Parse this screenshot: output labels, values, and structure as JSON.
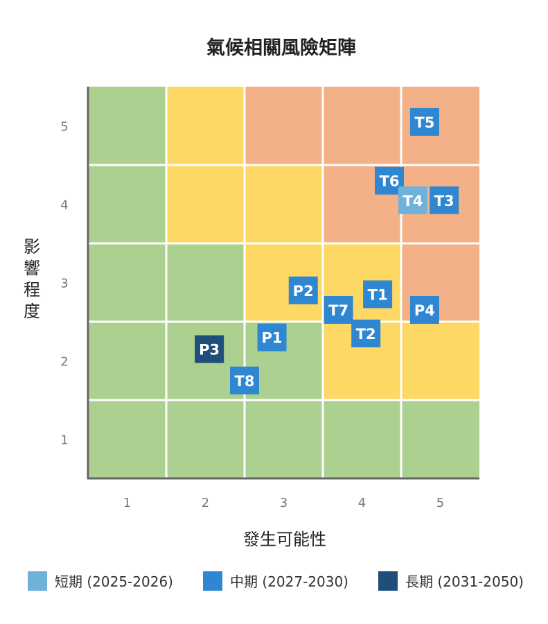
{
  "chart_data": {
    "type": "scatter",
    "title": "氣候相關風險矩陣",
    "xlabel": "發生可能性",
    "ylabel": "影響程度",
    "x_ticks": [
      "1",
      "2",
      "3",
      "4",
      "5"
    ],
    "y_ticks": [
      "1",
      "2",
      "3",
      "4",
      "5"
    ],
    "xlim": [
      0.5,
      5.5
    ],
    "ylim": [
      0.5,
      5.5
    ],
    "grid": true,
    "legend_position": "bottom",
    "zone_colors": {
      "low": "#acd090",
      "medium": "#fdd865",
      "high": "#f4b086"
    },
    "cells": [
      [
        "low",
        "low",
        "low",
        "low",
        "low"
      ],
      [
        "low",
        "low",
        "low",
        "medium",
        "medium"
      ],
      [
        "low",
        "low",
        "medium",
        "medium",
        "high"
      ],
      [
        "low",
        "medium",
        "medium",
        "high",
        "high"
      ],
      [
        "low",
        "medium",
        "high",
        "high",
        "high"
      ]
    ],
    "legend": [
      {
        "key": "short",
        "label": "短期 (2025-2026)",
        "color": "#6fb2d9"
      },
      {
        "key": "mid",
        "label": "中期 (2027-2030)",
        "color": "#2f87d1"
      },
      {
        "key": "long",
        "label": "長期 (2031-2050)",
        "color": "#1f4e7a"
      }
    ],
    "points": [
      {
        "label": "T5",
        "x": 4.8,
        "y": 5.05,
        "term": "mid"
      },
      {
        "label": "T6",
        "x": 4.35,
        "y": 4.3,
        "term": "mid"
      },
      {
        "label": "T4",
        "x": 4.65,
        "y": 4.05,
        "term": "short"
      },
      {
        "label": "T3",
        "x": 5.05,
        "y": 4.05,
        "term": "mid"
      },
      {
        "label": "P2",
        "x": 3.25,
        "y": 2.9,
        "term": "mid"
      },
      {
        "label": "T1",
        "x": 4.2,
        "y": 2.85,
        "term": "mid"
      },
      {
        "label": "T7",
        "x": 3.7,
        "y": 2.65,
        "term": "mid"
      },
      {
        "label": "P4",
        "x": 4.8,
        "y": 2.65,
        "term": "mid"
      },
      {
        "label": "T2",
        "x": 4.05,
        "y": 2.35,
        "term": "mid"
      },
      {
        "label": "P1",
        "x": 2.85,
        "y": 2.3,
        "term": "mid"
      },
      {
        "label": "P3",
        "x": 2.05,
        "y": 2.15,
        "term": "long"
      },
      {
        "label": "T8",
        "x": 2.5,
        "y": 1.75,
        "term": "mid"
      }
    ]
  }
}
